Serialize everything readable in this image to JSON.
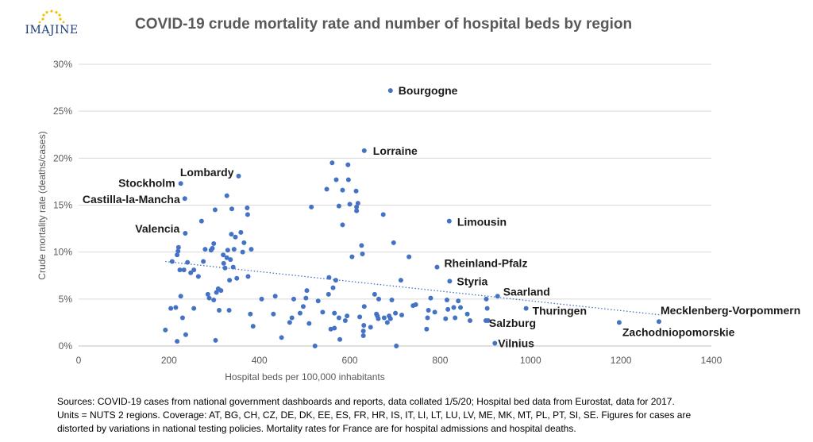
{
  "logo": {
    "text": "IMAJINE",
    "icon": "eu-stars-ring"
  },
  "notes": [
    "Sources: COVID-19 cases from national government dashboards and reports, data collated 1/5/20; Hospital bed data from Eurostat, data for 2017.",
    "Units = NUTS 2 regions. Coverage: AT, BG, CH, CZ, DE, DK, EE, ES, FR, HR, IS, IT, LI, LT, LU, LV, ME, MK, MT, PL, PT, SI, SE. Figures for cases are",
    "distorted by variations in national testing policies. Mortality rates for France are for hospital admissions and hospital deaths."
  ],
  "chart_data": {
    "type": "scatter",
    "title": "COVID-19 crude mortality rate and number of hospital beds by region",
    "xlabel": "Hospital beds per 100,000 inhabitants",
    "ylabel": "Crude mortality rate (deaths/cases)",
    "xlim": [
      0,
      1400
    ],
    "ylim": [
      0,
      30
    ],
    "xticks": [
      "0",
      "200",
      "400",
      "600",
      "800",
      "1000",
      "1200",
      "1400"
    ],
    "yticks": [
      "0%",
      "5%",
      "10%",
      "15%",
      "20%",
      "25%",
      "30%"
    ],
    "grid": "horizontal",
    "marker_color": "#4472c4",
    "trendline": {
      "style": "dotted linear",
      "x": [
        192,
        1290
      ],
      "y": [
        9.0,
        3.3
      ]
    },
    "labeled_points": [
      {
        "label": "Bourgogne",
        "x": 690,
        "y": 27.2
      },
      {
        "label": "Lorraine",
        "x": 632,
        "y": 20.8
      },
      {
        "label": "Lombardy",
        "x": 354,
        "y": 18.1
      },
      {
        "label": "Stockholm",
        "x": 226,
        "y": 17.3
      },
      {
        "label": "Castilla-la-Mancha",
        "x": 235,
        "y": 15.7
      },
      {
        "label": "Limousin",
        "x": 820,
        "y": 13.3
      },
      {
        "label": "Valencia",
        "x": 236,
        "y": 12.0
      },
      {
        "label": "Rheinland-Pfalz",
        "x": 793,
        "y": 8.4
      },
      {
        "label": "Styria",
        "x": 821,
        "y": 6.9
      },
      {
        "label": "Saarland",
        "x": 927,
        "y": 5.3
      },
      {
        "label": "Mecklenberg-Vorpommern",
        "x": 1284,
        "y": 2.6
      },
      {
        "label": "Zachodniopomorskie",
        "x": 1196,
        "y": 2.5
      },
      {
        "label": "Thuringen",
        "x": 990,
        "y": 4.0
      },
      {
        "label": "Salzburg",
        "x": 901,
        "y": 2.7
      },
      {
        "label": "Vilnius",
        "x": 921,
        "y": 0.3
      }
    ],
    "points": [
      [
        192,
        1.7
      ],
      [
        204,
        4.0
      ],
      [
        207,
        9.0
      ],
      [
        215,
        4.1
      ],
      [
        218,
        9.7
      ],
      [
        220,
        10.1
      ],
      [
        221,
        10.5
      ],
      [
        218,
        0.5
      ],
      [
        224,
        8.1
      ],
      [
        226,
        5.3
      ],
      [
        230,
        3.0
      ],
      [
        233,
        8.1
      ],
      [
        237,
        1.2
      ],
      [
        241,
        8.9
      ],
      [
        248,
        7.8
      ],
      [
        255,
        8.1
      ],
      [
        255,
        4.0
      ],
      [
        265,
        7.4
      ],
      [
        272,
        13.3
      ],
      [
        276,
        9.0
      ],
      [
        280,
        10.3
      ],
      [
        286,
        5.5
      ],
      [
        289,
        5.1
      ],
      [
        293,
        10.2
      ],
      [
        296,
        10.4
      ],
      [
        299,
        10.9
      ],
      [
        299,
        4.9
      ],
      [
        302,
        14.5
      ],
      [
        303,
        0.6
      ],
      [
        305,
        5.7
      ],
      [
        309,
        6.1
      ],
      [
        311,
        3.8
      ],
      [
        315,
        5.9
      ],
      [
        320,
        9.7
      ],
      [
        321,
        8.8
      ],
      [
        324,
        8.3
      ],
      [
        328,
        16.0
      ],
      [
        328,
        9.4
      ],
      [
        330,
        10.2
      ],
      [
        334,
        7.0
      ],
      [
        333,
        3.8
      ],
      [
        336,
        9.2
      ],
      [
        339,
        14.6
      ],
      [
        338,
        11.9
      ],
      [
        342,
        8.4
      ],
      [
        344,
        10.3
      ],
      [
        347,
        11.6
      ],
      [
        350,
        7.2
      ],
      [
        359,
        12.1
      ],
      [
        363,
        10.0
      ],
      [
        366,
        11.0
      ],
      [
        373,
        14.7
      ],
      [
        374,
        14.0
      ],
      [
        375,
        7.4
      ],
      [
        380,
        3.4
      ],
      [
        382,
        10.3
      ],
      [
        386,
        2.1
      ],
      [
        405,
        5.0
      ],
      [
        431,
        3.4
      ],
      [
        435,
        5.3
      ],
      [
        449,
        0.9
      ],
      [
        467,
        2.5
      ],
      [
        472,
        3.0
      ],
      [
        476,
        5.0
      ],
      [
        490,
        3.5
      ],
      [
        497,
        4.2
      ],
      [
        503,
        5.1
      ],
      [
        505,
        5.9
      ],
      [
        510,
        2.4
      ],
      [
        515,
        14.8
      ],
      [
        523,
        0.0
      ],
      [
        530,
        4.8
      ],
      [
        540,
        3.6
      ],
      [
        549,
        16.7
      ],
      [
        553,
        5.5
      ],
      [
        554,
        7.3
      ],
      [
        558,
        1.8
      ],
      [
        561,
        19.5
      ],
      [
        563,
        6.2
      ],
      [
        566,
        1.9
      ],
      [
        566,
        3.5
      ],
      [
        569,
        7.0
      ],
      [
        570,
        17.7
      ],
      [
        576,
        14.9
      ],
      [
        576,
        3.0
      ],
      [
        578,
        0.7
      ],
      [
        584,
        12.9
      ],
      [
        584,
        16.6
      ],
      [
        590,
        2.7
      ],
      [
        594,
        3.2
      ],
      [
        596,
        19.3
      ],
      [
        597,
        17.7
      ],
      [
        600,
        15.1
      ],
      [
        605,
        9.5
      ],
      [
        614,
        16.5
      ],
      [
        615,
        14.8
      ],
      [
        615,
        14.4
      ],
      [
        618,
        15.2
      ],
      [
        622,
        3.1
      ],
      [
        626,
        10.7
      ],
      [
        628,
        9.8
      ],
      [
        630,
        1.1
      ],
      [
        630,
        1.6
      ],
      [
        631,
        2.2
      ],
      [
        632,
        4.2
      ],
      [
        646,
        2.0
      ],
      [
        655,
        5.5
      ],
      [
        659,
        3.4
      ],
      [
        661,
        3.2
      ],
      [
        663,
        2.9
      ],
      [
        664,
        5.0
      ],
      [
        674,
        14.0
      ],
      [
        676,
        3.0
      ],
      [
        683,
        2.5
      ],
      [
        687,
        3.2
      ],
      [
        690,
        2.9
      ],
      [
        693,
        4.9
      ],
      [
        697,
        11.0
      ],
      [
        701,
        3.5
      ],
      [
        703,
        0.0
      ],
      [
        713,
        7.0
      ],
      [
        715,
        3.3
      ],
      [
        731,
        9.5
      ],
      [
        740,
        4.3
      ],
      [
        746,
        4.4
      ],
      [
        770,
        1.8
      ],
      [
        772,
        3.0
      ],
      [
        774,
        3.8
      ],
      [
        779,
        5.1
      ],
      [
        788,
        3.6
      ],
      [
        812,
        2.9
      ],
      [
        815,
        4.9
      ],
      [
        817,
        3.9
      ],
      [
        830,
        4.1
      ],
      [
        833,
        3.0
      ],
      [
        840,
        4.8
      ],
      [
        845,
        4.1
      ],
      [
        860,
        3.4
      ],
      [
        866,
        2.7
      ],
      [
        902,
        5.0
      ],
      [
        904,
        4.0
      ],
      [
        906,
        2.7
      ]
    ]
  }
}
